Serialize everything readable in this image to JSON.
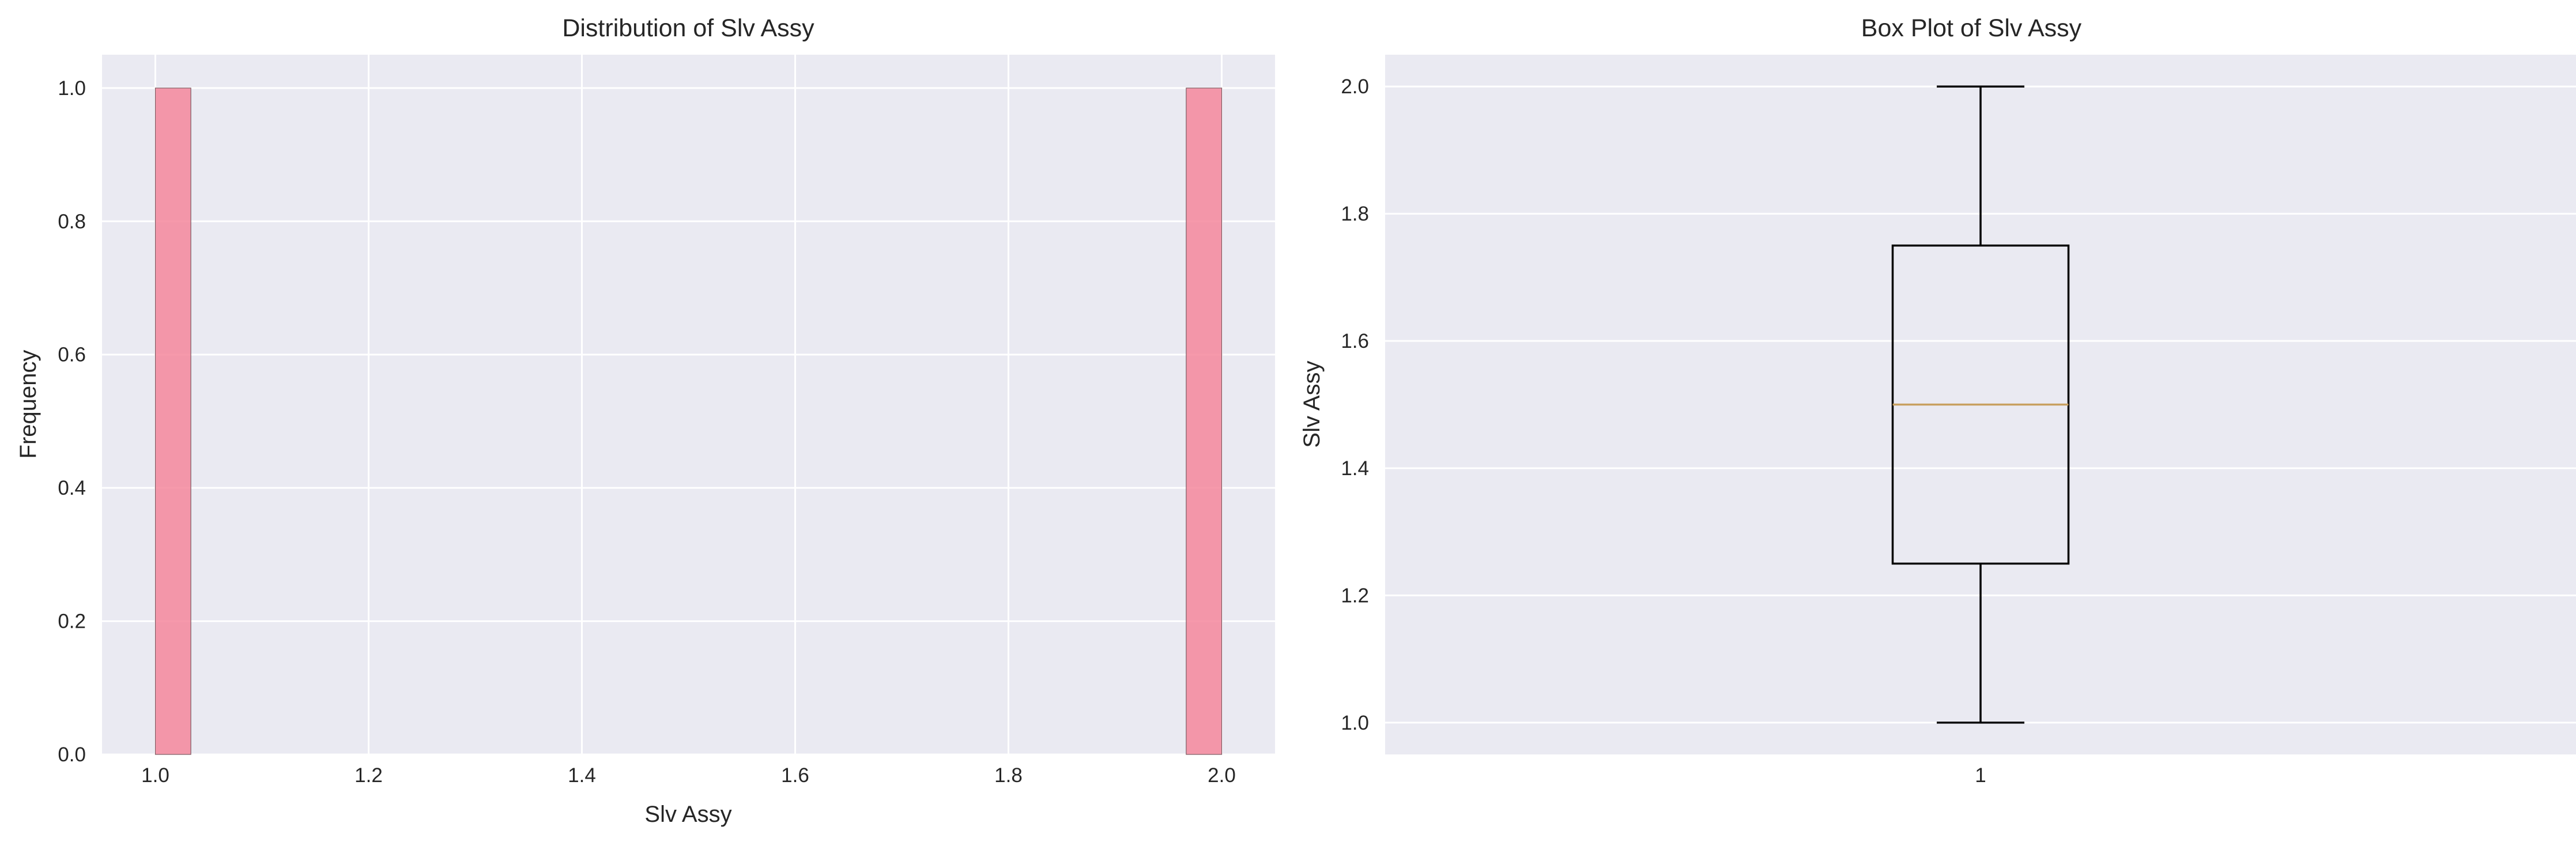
{
  "chart_data": [
    {
      "type": "bar",
      "title": "Distribution of Slv Assy",
      "xlabel": "Slv Assy",
      "ylabel": "Frequency",
      "xlim": [
        0.95,
        2.05
      ],
      "ylim": [
        0.0,
        1.05
      ],
      "xticks": [
        "1.0",
        "1.2",
        "1.4",
        "1.6",
        "1.8",
        "2.0"
      ],
      "yticks": [
        "0.0",
        "0.2",
        "0.4",
        "0.6",
        "0.8",
        "1.0"
      ],
      "bins": [
        {
          "x0": 1.0,
          "x1": 1.0333,
          "count": 1
        },
        {
          "x0": 1.9667,
          "x1": 2.0,
          "count": 1
        }
      ],
      "bar_color": "#f4879c",
      "grid": true
    },
    {
      "type": "box",
      "title": "Box Plot of Slv Assy",
      "xlabel": "",
      "ylabel": "Slv Assy",
      "ylim": [
        0.95,
        2.05
      ],
      "xticks": [
        "1"
      ],
      "yticks": [
        "1.0",
        "1.2",
        "1.4",
        "1.6",
        "1.8",
        "2.0"
      ],
      "stats": {
        "whisker_low": 1.0,
        "q1": 1.25,
        "median": 1.5,
        "q3": 1.75,
        "whisker_high": 2.0
      },
      "median_color": "#c8a060",
      "grid": true
    }
  ],
  "style": {
    "axes_bg": "#eaeaf2",
    "grid_color": "#ffffff",
    "text_color": "#262626"
  }
}
